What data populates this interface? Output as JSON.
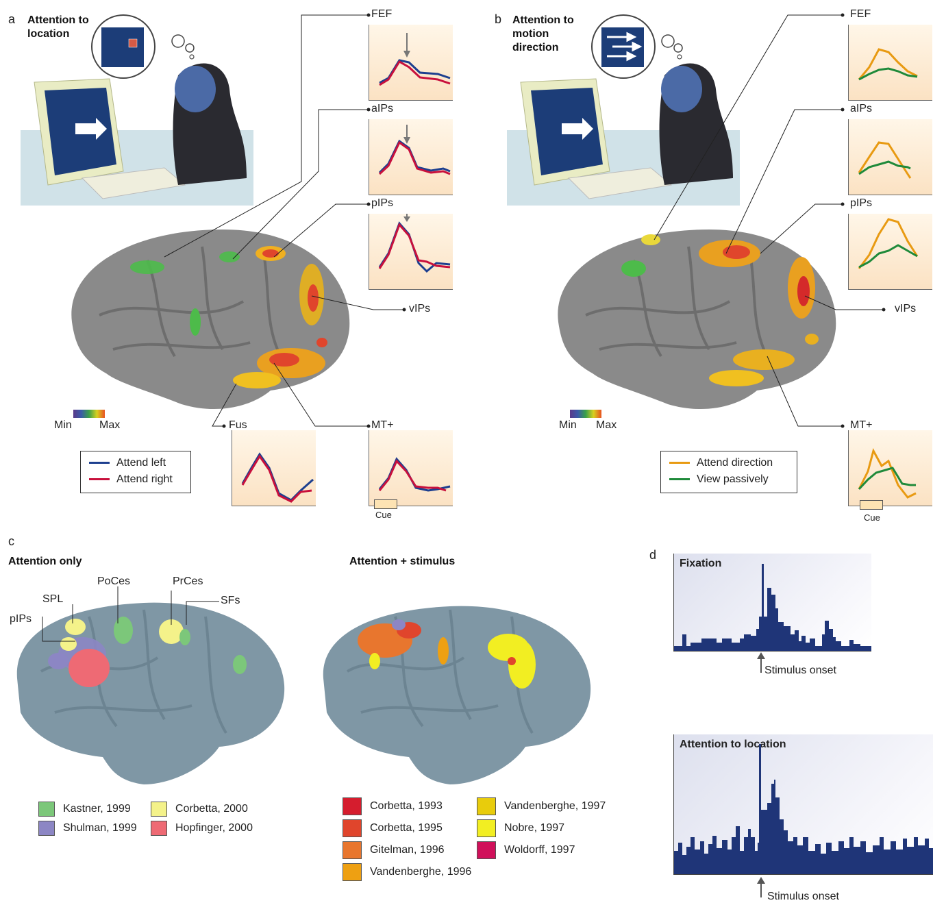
{
  "panel_a": {
    "letter": "a",
    "title": "Attention to location",
    "regions": [
      "FEF",
      "aIPs",
      "pIPs",
      "vIPs",
      "Fus",
      "MT+"
    ],
    "scale": {
      "min": "Min",
      "max": "Max"
    },
    "legend": [
      {
        "label": "Attend left",
        "color": "#1d3f8f"
      },
      {
        "label": "Attend right",
        "color": "#c8103c"
      }
    ],
    "cue_label": "Cue"
  },
  "panel_b": {
    "letter": "b",
    "title": "Attention to motion direction",
    "regions": [
      "FEF",
      "aIPs",
      "pIPs",
      "vIPs",
      "MT+"
    ],
    "scale": {
      "min": "Min",
      "max": "Max"
    },
    "legend": [
      {
        "label": "Attend direction",
        "color": "#e89a12"
      },
      {
        "label": "View passively",
        "color": "#1f8a3a"
      }
    ],
    "cue_label": "Cue"
  },
  "panel_c": {
    "letter": "c",
    "left_title": "Attention only",
    "right_title": "Attention + stimulus",
    "left_regions": [
      "PoCes",
      "PrCes",
      "SPL",
      "SFs",
      "pIPs"
    ],
    "left_refs": [
      {
        "label": "Kastner, 1999",
        "color": "#7cc77a"
      },
      {
        "label": "Corbetta, 2000",
        "color": "#f4f28a"
      },
      {
        "label": "Shulman, 1999",
        "color": "#8c86c4"
      },
      {
        "label": "Hopfinger, 2000",
        "color": "#ee6a74"
      }
    ],
    "right_refs": [
      {
        "label": "Corbetta, 1993",
        "color": "#d51d2e"
      },
      {
        "label": "Vandenberghe, 1997",
        "color": "#e8cc0c"
      },
      {
        "label": "Corbetta, 1995",
        "color": "#e0452c"
      },
      {
        "label": "Nobre, 1997",
        "color": "#f2ee22"
      },
      {
        "label": "Gitelman, 1996",
        "color": "#e8762e"
      },
      {
        "label": "Woldorff, 1997",
        "color": "#d0105a"
      },
      {
        "label": "Vandenberghe, 1996",
        "color": "#eea012"
      }
    ]
  },
  "panel_d": {
    "letter": "d",
    "histograms": [
      {
        "title": "Fixation",
        "onset_label": "Stimulus onset"
      },
      {
        "title": "Attention to location",
        "onset_label": "Stimulus onset"
      }
    ]
  },
  "colors": {
    "brain": "#8a8a8a",
    "brain_c": "#7f97a5",
    "hist_bar": "#1f3578",
    "leader": "#222222"
  }
}
